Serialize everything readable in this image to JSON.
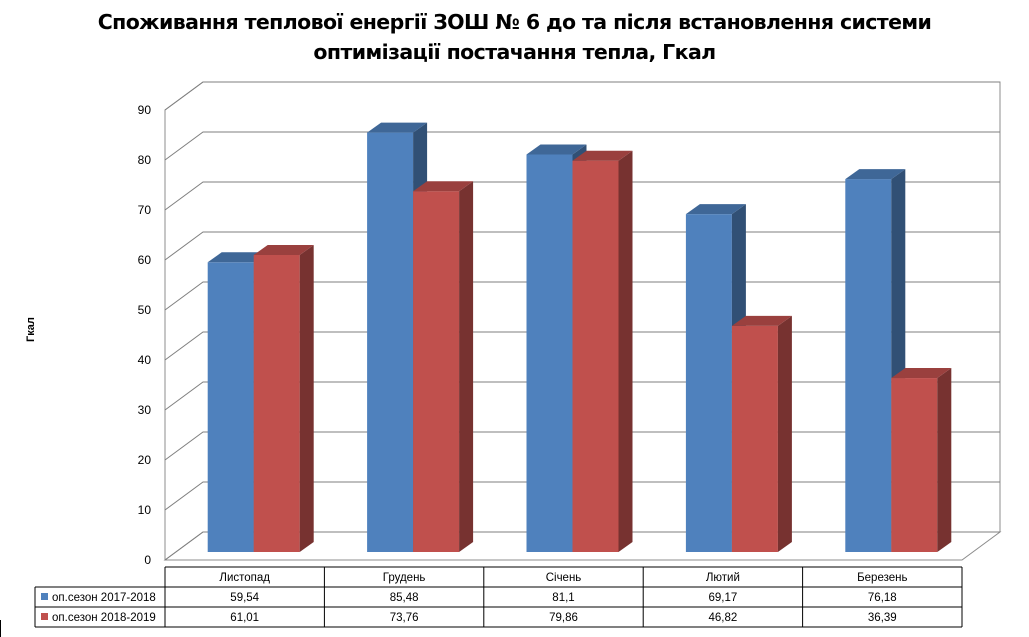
{
  "chart_data": {
    "type": "bar",
    "title": "Споживання теплової енергії ЗОШ № 6 до та після встановлення системи оптимізації постачання тепла, Гкал",
    "title_lines": [
      "Споживання теплової енергії ЗОШ № 6 до та після встановлення системи",
      "оптимізації постачання тепла, Гкал"
    ],
    "ylabel": "Гкал",
    "xlabel": "",
    "categories": [
      "Листопад",
      "Грудень",
      "Січень",
      "Лютий",
      "Березень"
    ],
    "series": [
      {
        "name": "оп.сезон 2017-2018",
        "values": [
          59.54,
          85.48,
          81.1,
          69.17,
          76.18
        ],
        "value_labels": [
          "59,54",
          "85,48",
          "81,1",
          "69,17",
          "76,18"
        ],
        "color": "#4f81bd"
      },
      {
        "name": "оп.сезон 2018-2019",
        "values": [
          61.01,
          73.76,
          79.86,
          46.82,
          36.39
        ],
        "value_labels": [
          "61,01",
          "73,76",
          "79,86",
          "46,82",
          "36,39"
        ],
        "color": "#c0504d"
      }
    ],
    "ylim": [
      0,
      90
    ],
    "yticks": [
      "0",
      "10",
      "20",
      "30",
      "40",
      "50",
      "60",
      "70",
      "80",
      "90"
    ],
    "grid": true,
    "legend": "data-table",
    "projection": "3d-column"
  }
}
